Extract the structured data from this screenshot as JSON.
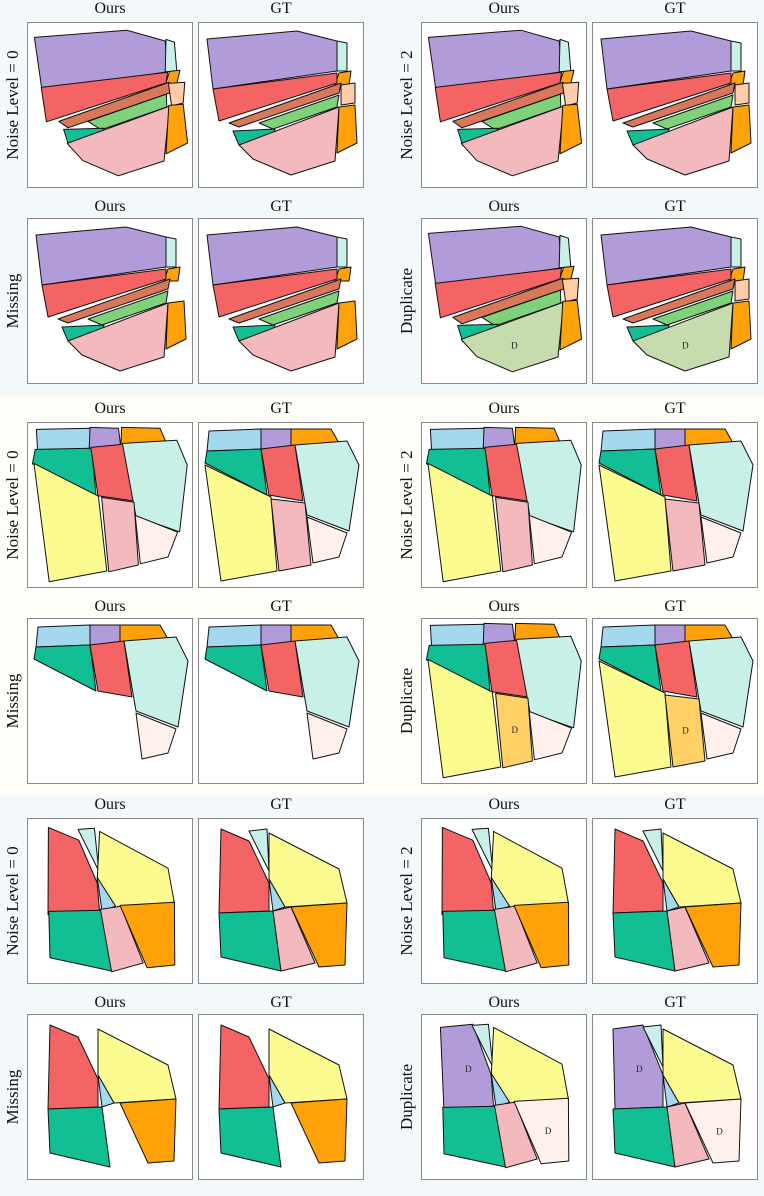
{
  "column_labels": {
    "ours": "Ours",
    "gt": "GT"
  },
  "row_labels": {
    "noise0": "Noise Level = 0",
    "noise2": "Noise Level = 2",
    "missing": "Missing",
    "duplicate": "Duplicate"
  },
  "duplicate_marker": "D",
  "colors": {
    "purple": "#b19cd9",
    "red": "#f46464",
    "pink": "#f4b9bd",
    "green_light": "#7fd17a",
    "teal": "#12bf95",
    "orange": "#ffa20a",
    "peach": "#ffccaa",
    "cyan_light": "#c8f0e8",
    "sky": "#a4d8ee",
    "yellow": "#fbfb8f",
    "cream": "#fff0ec",
    "sage": "#c6dbae",
    "gold": "#ffd166",
    "brown_red": "#d9775a"
  }
}
